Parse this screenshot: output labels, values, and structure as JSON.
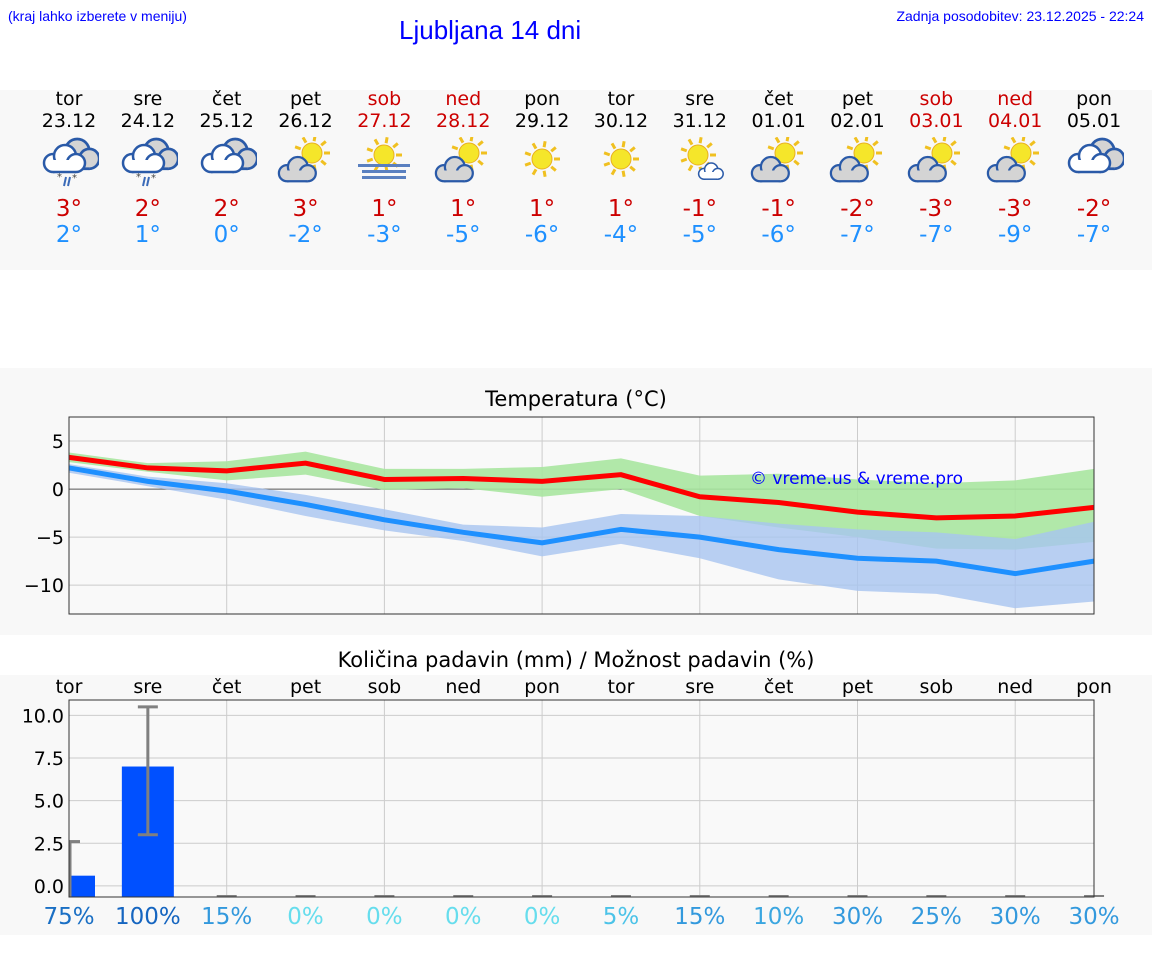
{
  "header": {
    "hint": "(kraj lahko izberete v meniju)",
    "title": "Ljubljana 14 dni",
    "updated": "Zadnja posodobitev: 23.12.2025 - 22:24"
  },
  "colors": {
    "weekend": "#cc0000",
    "max": "#ff0000",
    "min": "#1e90ff",
    "max_band": "#a8e6a0",
    "min_band": "#a8c4f0",
    "bar": "#0050ff",
    "error": "#808080"
  },
  "days": [
    {
      "name": "tor",
      "date": "23.12",
      "icon": "cloud-rain-snow-icon",
      "max": "3°",
      "min": "2°",
      "weekend": false,
      "pct": "75%",
      "pct_color": "#1a6fc4"
    },
    {
      "name": "sre",
      "date": "24.12",
      "icon": "cloud-rain-snow-icon",
      "max": "2°",
      "min": "1°",
      "weekend": false,
      "pct": "100%",
      "pct_color": "#1565c0"
    },
    {
      "name": "čet",
      "date": "25.12",
      "icon": "cloudy-icon",
      "max": "2°",
      "min": "0°",
      "weekend": false,
      "pct": "15%",
      "pct_color": "#3399dd"
    },
    {
      "name": "pet",
      "date": "26.12",
      "icon": "partly-sunny-icon",
      "max": "3°",
      "min": "-2°",
      "weekend": false,
      "pct": "0%",
      "pct_color": "#66dded"
    },
    {
      "name": "sob",
      "date": "27.12",
      "icon": "sun-fog-icon",
      "max": "1°",
      "min": "-3°",
      "weekend": true,
      "pct": "0%",
      "pct_color": "#66dded"
    },
    {
      "name": "ned",
      "date": "28.12",
      "icon": "partly-sunny-icon",
      "max": "1°",
      "min": "-5°",
      "weekend": true,
      "pct": "0%",
      "pct_color": "#66dded"
    },
    {
      "name": "pon",
      "date": "29.12",
      "icon": "sun-icon",
      "max": "1°",
      "min": "-6°",
      "weekend": false,
      "pct": "0%",
      "pct_color": "#66dded"
    },
    {
      "name": "tor",
      "date": "30.12",
      "icon": "sun-icon",
      "max": "1°",
      "min": "-4°",
      "weekend": false,
      "pct": "5%",
      "pct_color": "#4cc3e8"
    },
    {
      "name": "sre",
      "date": "31.12",
      "icon": "sun-small-cloud-icon",
      "max": "-1°",
      "min": "-5°",
      "weekend": false,
      "pct": "15%",
      "pct_color": "#3399dd"
    },
    {
      "name": "čet",
      "date": "01.01",
      "icon": "partly-sunny-icon",
      "max": "-1°",
      "min": "-6°",
      "weekend": false,
      "pct": "10%",
      "pct_color": "#3aa6e0"
    },
    {
      "name": "pet",
      "date": "02.01",
      "icon": "partly-sunny-icon",
      "max": "-2°",
      "min": "-7°",
      "weekend": false,
      "pct": "30%",
      "pct_color": "#3399dd"
    },
    {
      "name": "sob",
      "date": "03.01",
      "icon": "partly-sunny-icon",
      "max": "-3°",
      "min": "-7°",
      "weekend": true,
      "pct": "25%",
      "pct_color": "#3399dd"
    },
    {
      "name": "ned",
      "date": "04.01",
      "icon": "partly-sunny-icon",
      "max": "-3°",
      "min": "-9°",
      "weekend": true,
      "pct": "30%",
      "pct_color": "#3399dd"
    },
    {
      "name": "pon",
      "date": "05.01",
      "icon": "cloudy-icon",
      "max": "-2°",
      "min": "-7°",
      "weekend": false,
      "pct": "30%",
      "pct_color": "#3399dd"
    }
  ],
  "chart_data": [
    {
      "type": "line",
      "title": "Temperatura (°C)",
      "ylim": [
        -13,
        7.5
      ],
      "yticks": [
        5,
        0,
        -5,
        -10
      ],
      "ytick_labels": [
        "5",
        "0",
        "−5",
        "−10"
      ],
      "grid": true,
      "watermark": "© vreme.us & vreme.pro",
      "series": [
        {
          "values": [
            3.3,
            2.2,
            1.9,
            2.7,
            1.0,
            1.1,
            0.8,
            1.5,
            -0.8,
            -1.4,
            -2.4,
            -3.0,
            -2.8,
            -1.9
          ],
          "band_upper": [
            3.8,
            2.7,
            2.9,
            3.9,
            2.1,
            2.1,
            2.3,
            3.2,
            1.4,
            1.6,
            1.0,
            0.6,
            0.9,
            2.1
          ],
          "band_lower": [
            2.8,
            1.8,
            0.9,
            1.5,
            -0.1,
            0.1,
            -0.8,
            0.0,
            -2.8,
            -4.0,
            -5.0,
            -6.2,
            -6.3,
            -5.5
          ]
        },
        {
          "values": [
            2.2,
            0.8,
            -0.2,
            -1.6,
            -3.2,
            -4.5,
            -5.6,
            -4.2,
            -5.0,
            -6.3,
            -7.2,
            -7.5,
            -8.8,
            -7.5
          ],
          "band_upper": [
            2.6,
            1.3,
            0.6,
            -0.6,
            -2.1,
            -3.7,
            -4.0,
            -2.6,
            -2.8,
            -3.6,
            -4.2,
            -4.5,
            -5.2,
            -3.4
          ],
          "band_lower": [
            1.7,
            0.3,
            -1.1,
            -2.8,
            -4.3,
            -5.4,
            -7.0,
            -5.7,
            -7.2,
            -9.4,
            -10.6,
            -10.9,
            -12.4,
            -11.7
          ]
        }
      ]
    },
    {
      "type": "bar",
      "title": "Količina padavin (mm) / Možnost padavin (%)",
      "categories": [
        "tor",
        "sre",
        "čet",
        "pet",
        "sob",
        "ned",
        "pon",
        "tor",
        "sre",
        "čet",
        "pet",
        "sob",
        "ned",
        "pon"
      ],
      "ylim": [
        -0.65,
        10.9
      ],
      "yticks": [
        0,
        2.5,
        5,
        7.5,
        10
      ],
      "ytick_labels": [
        "0.0",
        "2.5",
        "5.0",
        "7.5",
        "10.0"
      ],
      "grid": true,
      "values": [
        0.6,
        7.0,
        0,
        0,
        0,
        0,
        0,
        0,
        0,
        0,
        0,
        0,
        0,
        0
      ],
      "error_low": [
        0,
        3.0,
        0,
        0,
        0,
        0,
        0,
        0,
        0,
        0,
        0,
        0,
        0,
        0
      ],
      "error_high": [
        2.6,
        10.5,
        0,
        0,
        0,
        0,
        0,
        0,
        0,
        0,
        0,
        0,
        0,
        0
      ]
    }
  ]
}
